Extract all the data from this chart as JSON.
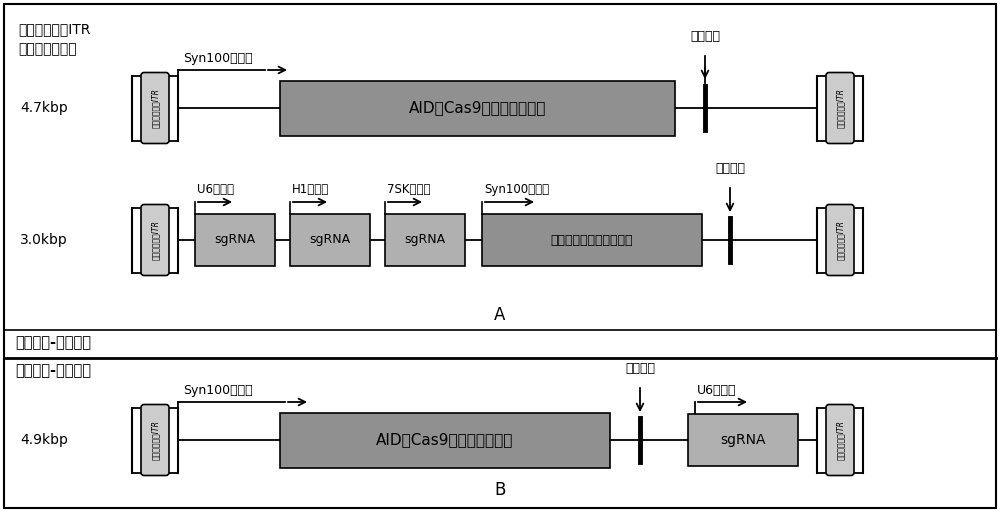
{
  "title_top_left_line1": "反向重复序列ITR",
  "title_top_left_line2": "间插入片段大小",
  "section_A_label": "A",
  "section_B_label": "B",
  "label_split": "分开包毒-混合给药",
  "label_merge": "合并包毒-单独给药",
  "row1": {
    "size_label": "4.7kbp",
    "itr_left_text": "反向重复序列ITR",
    "itr_right_text": "反向重复序列ITR",
    "promoter_label": "Syn100启动子",
    "tail_label": "加尾信号",
    "main_box_text": "AID和Cas9突变体融合蛋白",
    "main_box_color": "#909090"
  },
  "row2": {
    "size_label": "3.0kbp",
    "itr_left_text": "反向重复序列ITR",
    "itr_right_text": "反向重复序列ITR",
    "promoters": [
      "U6启动子",
      "H1启动子",
      "7SK启动子",
      "Syn100启动子"
    ],
    "tail_label": "加尾信号",
    "boxes": [
      "sgRNA",
      "sgRNA",
      "sgRNA",
      "绿色荧光蛋白及相关元件"
    ],
    "box_colors": [
      "#b0b0b0",
      "#b0b0b0",
      "#b0b0b0",
      "#909090"
    ]
  },
  "row3": {
    "size_label": "4.9kbp",
    "itr_left_text": "反向重复序列ITR",
    "itr_right_text": "反向重复序列ITR",
    "promoter1_label": "Syn100启动子",
    "promoter2_label": "U6启动子",
    "tail_label": "加尾信号",
    "main_box_text": "AID和Cas9突变体融合蛋白",
    "main_box_color": "#909090",
    "sgrna_box_text": "sgRNA",
    "sgrna_box_color": "#b0b0b0"
  },
  "bg_color": "#ffffff",
  "itr_box_color": "#cccccc"
}
